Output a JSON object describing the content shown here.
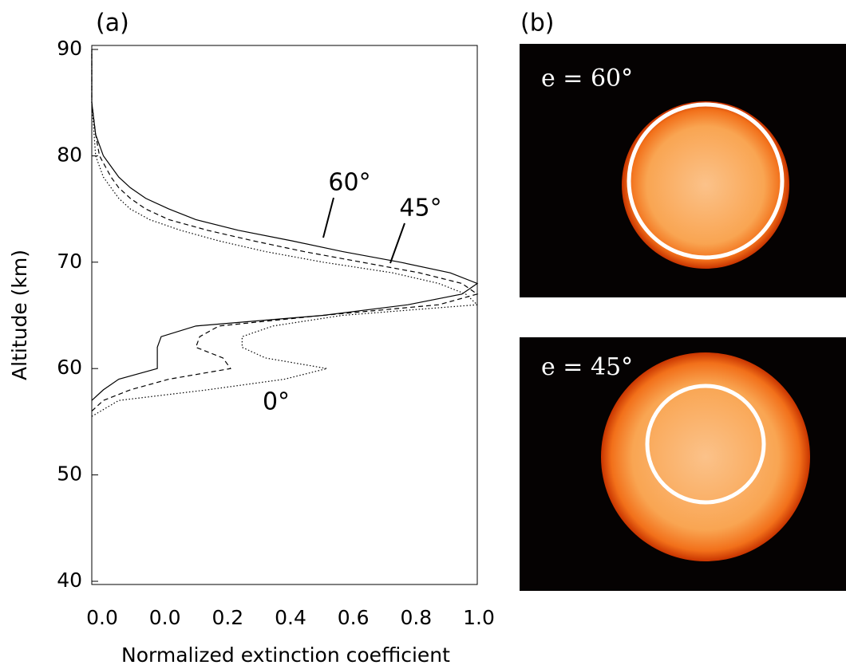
{
  "chart_data": {
    "type": "line",
    "panel_label": "(a)",
    "x_label": "Normalized extinction coefficient",
    "y_label": "Altitude (km)",
    "xlim": [
      0,
      1
    ],
    "xtick_labels": [
      "0.0",
      "0.0",
      "0.2",
      "0.4",
      "0.6",
      "0.8",
      "1.0"
    ],
    "ylim": [
      40,
      90
    ],
    "yticks": [
      40,
      50,
      60,
      70,
      80,
      90
    ],
    "series": [
      {
        "name": "60°",
        "color": "#000000",
        "dash": "solid",
        "x": [
          0.0,
          0.03,
          0.07,
          0.17,
          0.17,
          0.17,
          0.18,
          0.27,
          0.6,
          0.82,
          0.96,
          1.0,
          0.93,
          0.8,
          0.65,
          0.52,
          0.38,
          0.27,
          0.2,
          0.14,
          0.1,
          0.07,
          0.05,
          0.03,
          0.01,
          0.0,
          0.0
        ],
        "values": [
          57,
          58,
          59,
          60,
          61,
          62,
          63,
          64,
          65,
          66,
          67,
          68,
          69,
          70,
          71,
          72,
          73,
          74,
          75,
          76,
          77,
          78,
          79,
          80,
          82,
          85,
          90
        ]
      },
      {
        "name": "45°",
        "color": "#000000",
        "dash": "dashed",
        "x": [
          0.0,
          0.03,
          0.1,
          0.2,
          0.36,
          0.34,
          0.27,
          0.28,
          0.33,
          0.6,
          0.9,
          1.0,
          0.96,
          0.85,
          0.7,
          0.55,
          0.42,
          0.3,
          0.2,
          0.14,
          0.1,
          0.07,
          0.05,
          0.02,
          0.01,
          0.0,
          0.0
        ],
        "values": [
          56,
          57,
          58,
          59,
          60,
          61,
          62,
          63,
          64,
          65,
          66,
          67,
          68,
          69,
          70,
          71,
          72,
          73,
          74,
          75,
          76,
          77,
          78,
          80,
          82,
          85,
          90
        ]
      },
      {
        "name": "0°",
        "color": "#000000",
        "dash": "dotted",
        "x": [
          0.0,
          0.07,
          0.3,
          0.5,
          0.61,
          0.45,
          0.39,
          0.39,
          0.47,
          0.65,
          1.0,
          0.97,
          0.9,
          0.78,
          0.6,
          0.45,
          0.33,
          0.23,
          0.15,
          0.1,
          0.07,
          0.05,
          0.03,
          0.01,
          0.0,
          0.0
        ],
        "values": [
          55.5,
          57,
          58,
          59,
          60,
          61,
          62,
          63,
          64,
          65,
          66,
          67,
          68,
          69,
          70,
          71,
          72,
          73,
          74,
          75,
          76,
          77,
          78,
          80,
          85,
          90
        ]
      }
    ]
  },
  "images": {
    "panel_label": "(b)",
    "top_label": "e = 60°",
    "bottom_label": "e = 45°"
  }
}
